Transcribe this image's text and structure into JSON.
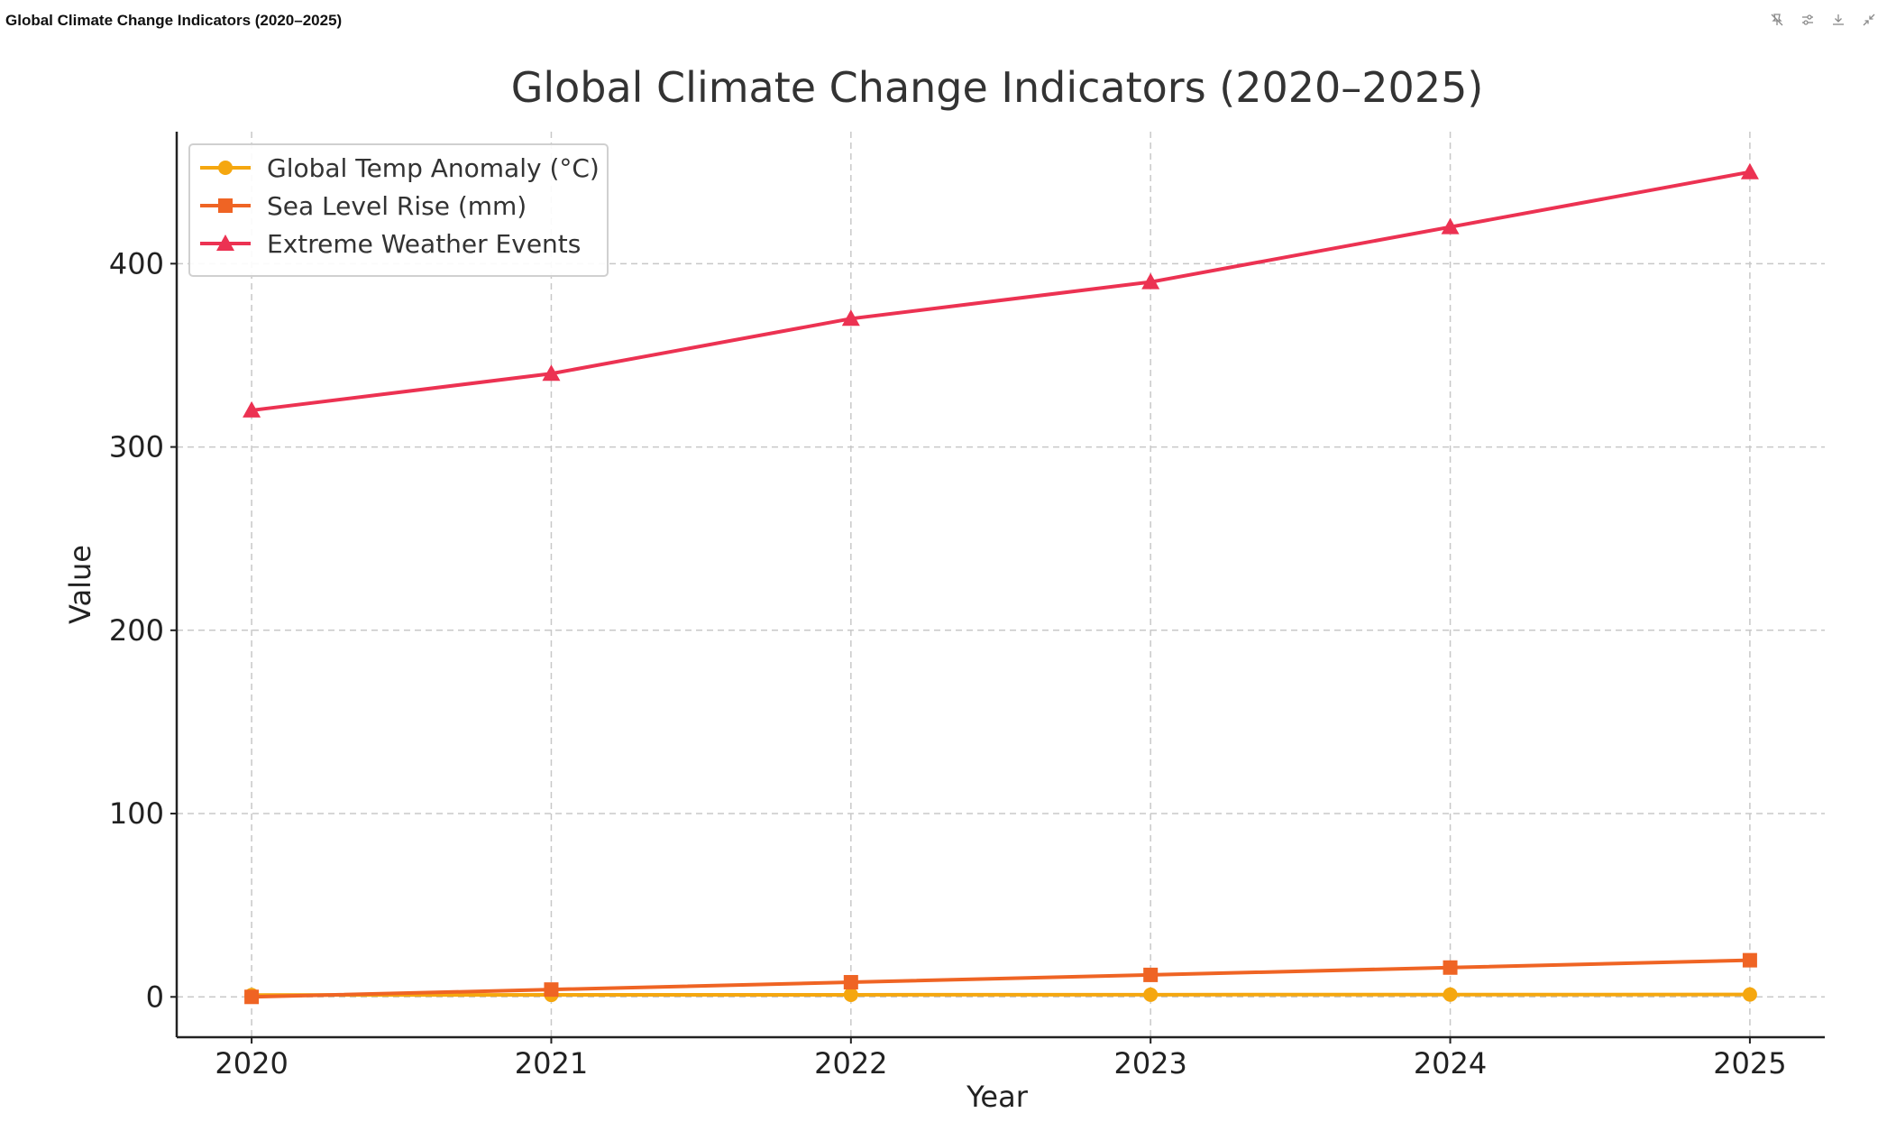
{
  "window": {
    "title": "Global Climate Change Indicators (2020–2025)"
  },
  "toolbar": {
    "icons": [
      "pin-off-icon",
      "sliders-icon",
      "download-icon",
      "collapse-icon"
    ]
  },
  "colors": {
    "temp": "#f5a70f",
    "sea": "#ef6424",
    "weather": "#ec3252",
    "grid": "#c8c8c8",
    "axis": "#222222",
    "text": "#333333"
  },
  "chart_data": {
    "type": "line",
    "title": "Global Climate Change Indicators (2020–2025)",
    "xlabel": "Year",
    "ylabel": "Value",
    "x": [
      2020,
      2021,
      2022,
      2023,
      2024,
      2025
    ],
    "x_tick_labels": [
      "2020",
      "2021",
      "2022",
      "2023",
      "2024",
      "2025"
    ],
    "y_ticks": [
      0,
      100,
      200,
      300,
      400
    ],
    "y_tick_labels": [
      "0",
      "100",
      "200",
      "300",
      "400"
    ],
    "xlim": [
      2019.75,
      2025.25
    ],
    "ylim": [
      -22,
      472
    ],
    "grid": true,
    "legend_position": "top-left",
    "series": [
      {
        "name": "Global Temp Anomaly (°C)",
        "marker": "circle",
        "color": "#f5a70f",
        "values": [
          1.02,
          1.1,
          1.15,
          1.2,
          1.25,
          1.3
        ]
      },
      {
        "name": "Sea Level Rise (mm)",
        "marker": "square",
        "color": "#ef6424",
        "values": [
          0,
          4,
          8,
          12,
          16,
          20
        ]
      },
      {
        "name": "Extreme Weather Events",
        "marker": "triangle",
        "color": "#ec3252",
        "values": [
          320,
          340,
          370,
          390,
          420,
          450
        ]
      }
    ]
  }
}
